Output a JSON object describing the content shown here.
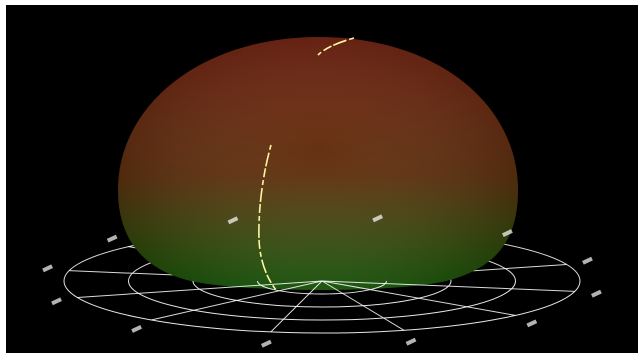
{
  "scene": {
    "kind": "3d-radiation-pattern",
    "background_color": "#000000",
    "surface_colors": {
      "top": "#6e1a08",
      "middle": "#5a2a06",
      "bottom": "#1f6a10"
    },
    "grid_color": "#ffffff",
    "cut_line_color": "#fff6a0",
    "polar_grid": {
      "rings": 4,
      "spokes": 12
    },
    "tick_labels": [
      "",
      "",
      "",
      "",
      "",
      "",
      "",
      "",
      "",
      "",
      "",
      ""
    ]
  }
}
